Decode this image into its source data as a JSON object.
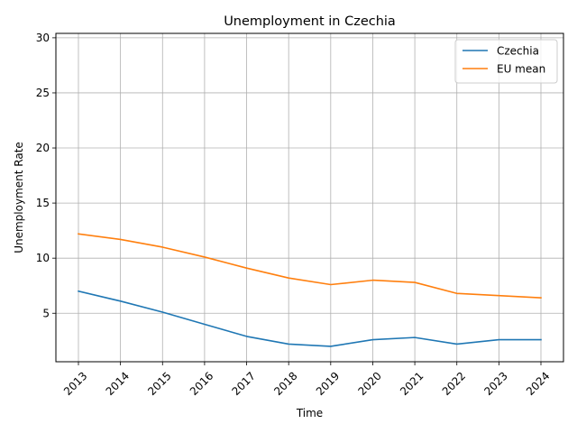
{
  "chart_data": {
    "type": "line",
    "title": "Unemployment in Czechia",
    "xlabel": "Time",
    "ylabel": "Unemployment Rate",
    "categories": [
      "2013",
      "2014",
      "2015",
      "2016",
      "2017",
      "2018",
      "2019",
      "2020",
      "2021",
      "2022",
      "2023",
      "2024"
    ],
    "yticks": [
      5,
      10,
      15,
      20,
      25,
      30
    ],
    "ytick_labels": [
      "5",
      "10",
      "15",
      "20",
      "25",
      "30"
    ],
    "ylim": [
      0.6,
      30.4
    ],
    "grid": true,
    "legend_position": "upper-right",
    "series": [
      {
        "name": "Czechia",
        "color": "#1f77b4",
        "values": [
          7.0,
          6.1,
          5.1,
          4.0,
          2.9,
          2.2,
          2.0,
          2.6,
          2.8,
          2.2,
          2.6,
          2.6
        ]
      },
      {
        "name": "EU mean",
        "color": "#ff7f0e",
        "values": [
          12.2,
          11.7,
          11.0,
          10.1,
          9.1,
          8.2,
          7.6,
          8.0,
          7.8,
          6.8,
          6.6,
          6.4
        ]
      }
    ]
  }
}
